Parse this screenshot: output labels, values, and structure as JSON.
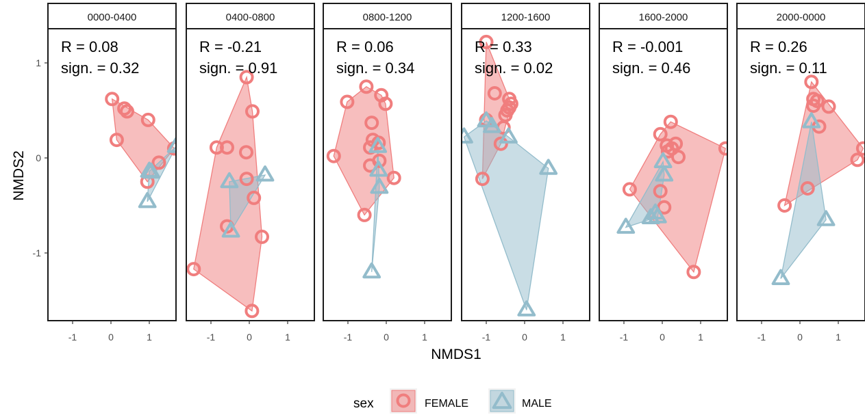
{
  "chart_data": {
    "type": "scatter",
    "xlabel": "NMDS1",
    "ylabel": "NMDS2",
    "xlim": [
      -1.75,
      1.75
    ],
    "ylim": [
      -1.75,
      1.4
    ],
    "x_ticks": [
      -1,
      0,
      1
    ],
    "y_ticks": [
      1,
      0,
      -1
    ],
    "legend": {
      "title": "sex",
      "position": "bottom",
      "entries": [
        {
          "label": "FEMALE",
          "color": "#F07E7E",
          "shape": "circle"
        },
        {
          "label": "MALE",
          "color": "#93BCCB",
          "shape": "triangle"
        }
      ]
    },
    "panels": [
      {
        "label": "0000-0400",
        "stat_r": "R = 0.08",
        "stat_sign": "sign. = 0.32",
        "female": [
          [
            0.03,
            0.62
          ],
          [
            0.35,
            0.52
          ],
          [
            0.42,
            0.49
          ],
          [
            0.97,
            0.4
          ],
          [
            0.15,
            0.19
          ],
          [
            1.25,
            -0.05
          ],
          [
            1.65,
            0.1
          ],
          [
            0.95,
            -0.25
          ]
        ],
        "male": [
          [
            1.7,
            0.12
          ],
          [
            1.0,
            -0.14
          ],
          [
            0.95,
            -0.46
          ],
          [
            1.05,
            -0.15
          ]
        ]
      },
      {
        "label": "0400-0800",
        "stat_r": "R = -0.21",
        "stat_sign": "sign. = 0.91",
        "female": [
          [
            -0.07,
            0.85
          ],
          [
            0.08,
            0.49
          ],
          [
            -0.85,
            0.11
          ],
          [
            -0.58,
            0.11
          ],
          [
            -0.08,
            0.06
          ],
          [
            -0.07,
            -0.22
          ],
          [
            0.12,
            -0.42
          ],
          [
            -0.58,
            -0.72
          ],
          [
            0.33,
            -0.83
          ],
          [
            -1.45,
            -1.17
          ],
          [
            0.07,
            -1.61
          ]
        ],
        "male": [
          [
            -0.52,
            -0.25
          ],
          [
            0.41,
            -0.18
          ],
          [
            -0.48,
            -0.77
          ]
        ]
      },
      {
        "label": "0800-1200",
        "stat_r": "R = 0.06",
        "stat_sign": "sign. = 0.34",
        "female": [
          [
            -0.52,
            0.75
          ],
          [
            -0.13,
            0.66
          ],
          [
            -1.02,
            0.59
          ],
          [
            -0.02,
            0.57
          ],
          [
            -0.38,
            0.37
          ],
          [
            -0.35,
            0.19
          ],
          [
            -0.2,
            0.16
          ],
          [
            -0.42,
            0.11
          ],
          [
            -1.37,
            0.02
          ],
          [
            -0.42,
            -0.08
          ],
          [
            -0.18,
            -0.03
          ],
          [
            0.2,
            -0.21
          ],
          [
            -0.57,
            -0.6
          ]
        ],
        "male": [
          [
            -0.22,
            0.12
          ],
          [
            -0.2,
            -0.13
          ],
          [
            -0.18,
            -0.31
          ],
          [
            -0.38,
            -1.2
          ]
        ]
      },
      {
        "label": "1200-1600",
        "stat_r": "R = 0.33",
        "stat_sign": "sign. = 0.02",
        "female": [
          [
            -1.0,
            1.22
          ],
          [
            -0.78,
            0.68
          ],
          [
            -0.4,
            0.62
          ],
          [
            -0.35,
            0.57
          ],
          [
            -0.4,
            0.53
          ],
          [
            -0.45,
            0.5
          ],
          [
            -0.5,
            0.45
          ],
          [
            -1.0,
            0.4
          ],
          [
            -0.55,
            0.32
          ],
          [
            -0.62,
            0.15
          ],
          [
            -1.1,
            -0.22
          ]
        ],
        "male": [
          [
            -1.58,
            0.22
          ],
          [
            -1.0,
            0.39
          ],
          [
            -0.85,
            0.33
          ],
          [
            -0.42,
            0.22
          ],
          [
            0.62,
            -0.11
          ],
          [
            0.05,
            -1.6
          ]
        ]
      },
      {
        "label": "1600-2000",
        "stat_r": "R = -0.001",
        "stat_sign": "sign. = 0.46",
        "female": [
          [
            0.22,
            0.38
          ],
          [
            -0.05,
            0.25
          ],
          [
            0.35,
            0.15
          ],
          [
            0.12,
            0.13
          ],
          [
            0.25,
            0.1
          ],
          [
            0.15,
            0.07
          ],
          [
            0.42,
            0.01
          ],
          [
            1.65,
            0.1
          ],
          [
            -0.85,
            -0.33
          ],
          [
            -0.05,
            -0.35
          ],
          [
            0.05,
            -0.52
          ],
          [
            0.82,
            -1.2
          ]
        ],
        "male": [
          [
            0.02,
            -0.04
          ],
          [
            0.05,
            -0.18
          ],
          [
            -0.18,
            -0.58
          ],
          [
            -0.12,
            -0.62
          ],
          [
            -0.3,
            -0.63
          ],
          [
            -0.95,
            -0.73
          ]
        ]
      },
      {
        "label": "2000-0000",
        "stat_r": "R = 0.26",
        "stat_sign": "sign. = 0.11",
        "female": [
          [
            0.3,
            0.8
          ],
          [
            0.35,
            0.62
          ],
          [
            0.45,
            0.6
          ],
          [
            0.35,
            0.55
          ],
          [
            0.75,
            0.54
          ],
          [
            0.5,
            0.33
          ],
          [
            1.65,
            0.1
          ],
          [
            1.5,
            -0.02
          ],
          [
            0.2,
            -0.32
          ],
          [
            -0.4,
            -0.5
          ]
        ],
        "male": [
          [
            0.3,
            0.38
          ],
          [
            0.68,
            -0.65
          ],
          [
            -0.5,
            -1.27
          ]
        ]
      }
    ]
  }
}
